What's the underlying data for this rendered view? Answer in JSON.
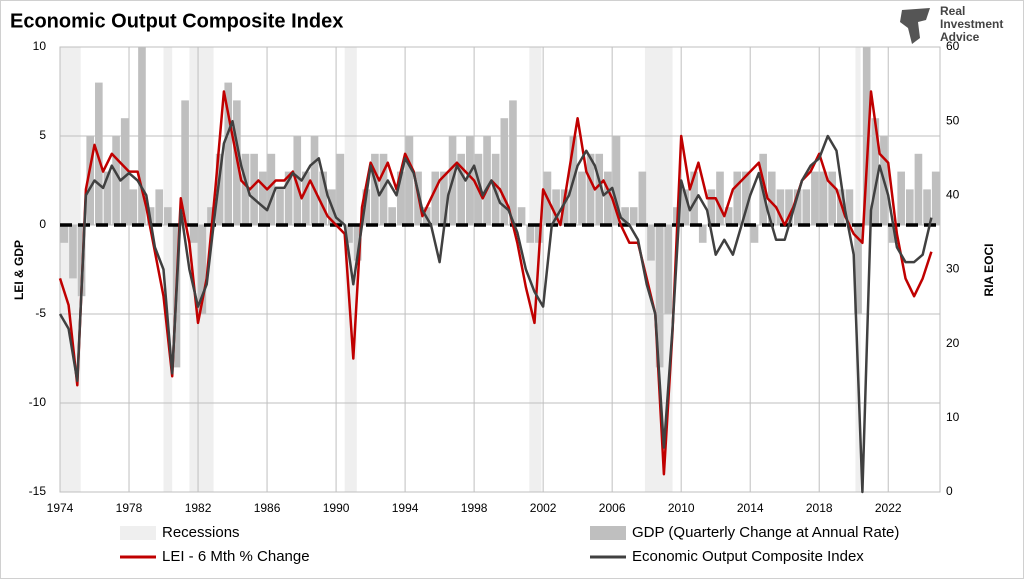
{
  "chart_data": {
    "type": "combo",
    "title": "Economic Output Composite Index",
    "logo": [
      "Real",
      "Investment",
      "Advice"
    ],
    "y_label": "LEI & GDP",
    "y2_label": "RIA EOCI",
    "xlim": [
      1974,
      2025
    ],
    "xticks": [
      1974,
      1978,
      1982,
      1986,
      1990,
      1994,
      1998,
      2002,
      2006,
      2010,
      2014,
      2018,
      2022
    ],
    "ylim": [
      -15,
      10
    ],
    "yticks": [
      10,
      5,
      0,
      -5,
      -10,
      -15
    ],
    "y2lim": [
      0,
      60
    ],
    "y2ticks": [
      60,
      50,
      40,
      30,
      20,
      10,
      0
    ],
    "grid": true,
    "reference_line": 0,
    "recessions": {
      "name": "Recessions",
      "color": "#efefef",
      "periods": [
        [
          1974.0,
          1975.2
        ],
        [
          1980.0,
          1980.5
        ],
        [
          1981.5,
          1982.9
        ],
        [
          1990.5,
          1991.2
        ],
        [
          2001.2,
          2001.9
        ],
        [
          2007.9,
          2009.5
        ],
        [
          2020.1,
          2020.4
        ]
      ]
    },
    "x": [
      1974.0,
      1974.5,
      1975.0,
      1975.5,
      1976.0,
      1976.5,
      1977.0,
      1977.5,
      1978.0,
      1978.5,
      1979.0,
      1979.5,
      1980.0,
      1980.5,
      1981.0,
      1981.5,
      1982.0,
      1982.5,
      1983.0,
      1983.5,
      1984.0,
      1984.5,
      1985.0,
      1985.5,
      1986.0,
      1986.5,
      1987.0,
      1987.5,
      1988.0,
      1988.5,
      1989.0,
      1989.5,
      1990.0,
      1990.5,
      1991.0,
      1991.5,
      1992.0,
      1992.5,
      1993.0,
      1993.5,
      1994.0,
      1994.5,
      1995.0,
      1995.5,
      1996.0,
      1996.5,
      1997.0,
      1997.5,
      1998.0,
      1998.5,
      1999.0,
      1999.5,
      2000.0,
      2000.5,
      2001.0,
      2001.5,
      2002.0,
      2002.5,
      2003.0,
      2003.5,
      2004.0,
      2004.5,
      2005.0,
      2005.5,
      2006.0,
      2006.5,
      2007.0,
      2007.5,
      2008.0,
      2008.5,
      2009.0,
      2009.5,
      2010.0,
      2010.5,
      2011.0,
      2011.5,
      2012.0,
      2012.5,
      2013.0,
      2013.5,
      2014.0,
      2014.5,
      2015.0,
      2015.5,
      2016.0,
      2016.5,
      2017.0,
      2017.5,
      2018.0,
      2018.5,
      2019.0,
      2019.5,
      2020.0,
      2020.5,
      2021.0,
      2021.5,
      2022.0,
      2022.5,
      2023.0,
      2023.5,
      2024.0,
      2024.5
    ],
    "series": [
      {
        "name": "GDP (Quarterly Change at Annual Rate)",
        "kind": "bar",
        "color": "#bfbfbf",
        "values": [
          -1,
          -3,
          -4,
          5,
          8,
          3,
          5,
          6,
          2,
          10,
          1,
          2,
          1,
          -8,
          7,
          -1,
          -5,
          1,
          4,
          8,
          7,
          4,
          4,
          3,
          4,
          2,
          3,
          5,
          3,
          5,
          3,
          2,
          4,
          -1,
          -2,
          2,
          4,
          4,
          1,
          3,
          5,
          3,
          1,
          3,
          3,
          5,
          4,
          5,
          4,
          5,
          4,
          6,
          7,
          1,
          -1,
          -1,
          3,
          2,
          2,
          5,
          3,
          4,
          4,
          3,
          5,
          1,
          1,
          3,
          -2,
          -8,
          -5,
          1,
          2,
          3,
          -1,
          2,
          3,
          1,
          3,
          3,
          -1,
          4,
          3,
          2,
          2,
          2,
          2,
          3,
          3,
          3,
          2,
          2,
          -5,
          10,
          6,
          5,
          -1,
          3,
          2,
          4,
          2,
          3
        ]
      },
      {
        "name": "LEI - 6 Mth % Change",
        "kind": "line",
        "color": "#c00000",
        "values": [
          -3,
          -4.5,
          -9,
          2,
          4.5,
          3,
          4,
          3.5,
          3,
          3,
          1,
          -1.5,
          -4,
          -8.5,
          1.5,
          -1,
          -5.5,
          -3,
          2,
          7.5,
          5,
          2.5,
          2,
          2.5,
          2,
          2.5,
          2.5,
          3,
          1.5,
          2.5,
          1.5,
          0.5,
          0,
          -0.5,
          -7.5,
          1,
          3.5,
          2.5,
          3.5,
          2,
          4,
          3,
          0.5,
          1.5,
          2.5,
          3,
          3.5,
          3,
          2.5,
          1.5,
          2.5,
          2,
          1,
          -1,
          -3.5,
          -5.5,
          2,
          1,
          0,
          3,
          6,
          3,
          2,
          2.5,
          1.5,
          0,
          -1,
          -1,
          -3,
          -5,
          -14,
          -6,
          5,
          2,
          3.5,
          1.5,
          1.5,
          0.5,
          2,
          2.5,
          3,
          3.5,
          1.5,
          1,
          0,
          1,
          2.5,
          3,
          4,
          2.5,
          2,
          0.5,
          -0.5,
          -1,
          7.5,
          4,
          3.5,
          -0.5,
          -3,
          -4,
          -3,
          -1.5
        ]
      },
      {
        "name": "Economic Output Composite Index",
        "kind": "line",
        "axis": "y2",
        "color": "#404040",
        "values": [
          24,
          22,
          15,
          40,
          42,
          41,
          44,
          42,
          43,
          42,
          40,
          33,
          30,
          16,
          38,
          30,
          25,
          28,
          38,
          47,
          50,
          44,
          40,
          39,
          38,
          41,
          41,
          43,
          42,
          44,
          45,
          40,
          37,
          36,
          28,
          36,
          44,
          40,
          42,
          40,
          45,
          43,
          38,
          36,
          31,
          40,
          44,
          42,
          44,
          40,
          42,
          39,
          38,
          35,
          30,
          27,
          25,
          36,
          38,
          40,
          44,
          46,
          44,
          40,
          41,
          37,
          36,
          34,
          28,
          24,
          6,
          22,
          42,
          38,
          40,
          38,
          32,
          34,
          32,
          36,
          40,
          43,
          38,
          34,
          34,
          38,
          42,
          44,
          45,
          48,
          46,
          38,
          32,
          0,
          38,
          44,
          40,
          33,
          31,
          31,
          32,
          37
        ]
      }
    ]
  }
}
